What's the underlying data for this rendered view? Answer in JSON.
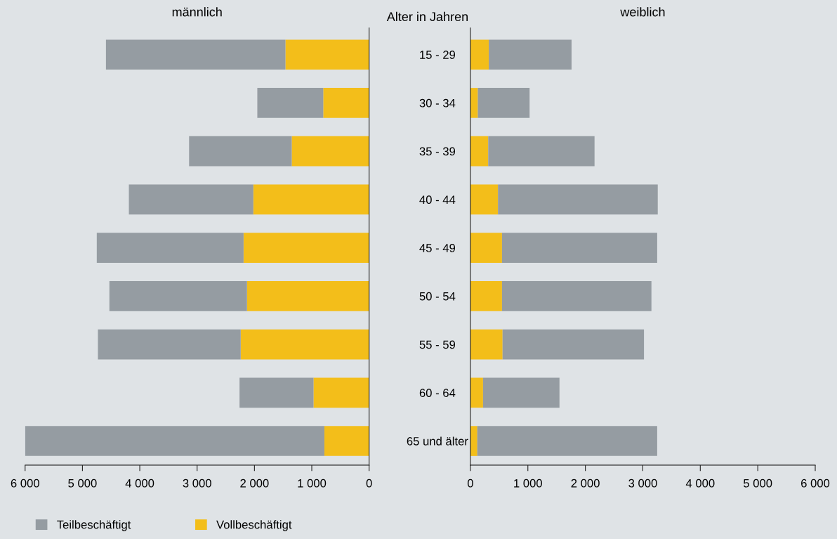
{
  "chart_data": [
    {
      "type": "bar",
      "orientation": "horizontal",
      "stacked": true,
      "title": "männlich",
      "ylabel": "Alter in Jahren",
      "categories": [
        "15 - 29",
        "30 - 34",
        "35 - 39",
        "40 - 44",
        "45 - 49",
        "50 - 54",
        "55 - 59",
        "60 - 64",
        "65 und älter"
      ],
      "series": [
        {
          "name": "Vollbeschäftigt",
          "color": "#f3be1a",
          "values": [
            1460,
            800,
            1350,
            2020,
            2190,
            2130,
            2240,
            970,
            780
          ]
        },
        {
          "name": "Teilbeschäftigt",
          "color": "#959ca2",
          "values": [
            3130,
            1150,
            1790,
            2170,
            2560,
            2400,
            2490,
            1290,
            5220
          ]
        }
      ],
      "xlim": [
        6000,
        0
      ],
      "xticks": [
        {
          "value": 6000,
          "label": "6 000"
        },
        {
          "value": 5000,
          "label": "5 000"
        },
        {
          "value": 4000,
          "label": "4 000"
        },
        {
          "value": 3000,
          "label": "3 000"
        },
        {
          "value": 2000,
          "label": "2 000"
        },
        {
          "value": 1000,
          "label": "1 000"
        },
        0
      ],
      "grid": false,
      "legend": "bottom"
    },
    {
      "type": "bar",
      "orientation": "horizontal",
      "stacked": true,
      "title": "weiblich",
      "categories": [
        null,
        null,
        null,
        null,
        null,
        null,
        null,
        null,
        null
      ],
      "series": [
        {
          "color": "#f3be1a",
          "values": [
            320,
            130,
            310,
            480,
            550,
            550,
            560,
            220,
            120
          ]
        },
        {
          "color": "#959ca2",
          "values": [
            1440,
            900,
            1850,
            2780,
            2700,
            2600,
            2460,
            1330,
            3130
          ]
        }
      ],
      "xlim": [
        0,
        6000
      ],
      "xticks": [
        0,
        {
          "value": 1000,
          "label": "1 000"
        },
        {
          "value": 2000,
          "label": "2 000"
        },
        {
          "value": 3000,
          "label": "3 000"
        },
        {
          "value": 4000,
          "label": "4 000"
        },
        {
          "value": 5000,
          "label": "5 000"
        },
        {
          "value": 6000,
          "label": "6 000"
        }
      ],
      "grid": false,
      "legend": false,
      "tick_labels": "x"
    }
  ]
}
